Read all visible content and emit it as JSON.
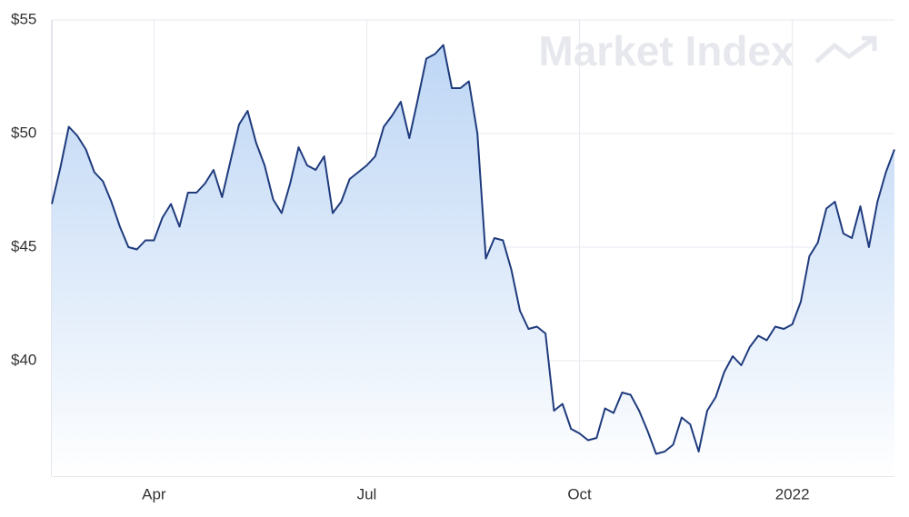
{
  "chart_data": {
    "type": "area-line",
    "watermark": "Market Index",
    "categories": [
      null,
      null,
      null,
      null,
      null,
      null,
      null,
      null,
      null,
      null,
      null,
      null,
      "Apr",
      null,
      null,
      null,
      null,
      null,
      null,
      null,
      null,
      null,
      null,
      null,
      null,
      null,
      null,
      null,
      null,
      null,
      null,
      null,
      null,
      null,
      null,
      null,
      null,
      "Jul",
      null,
      null,
      null,
      null,
      null,
      null,
      null,
      null,
      null,
      null,
      null,
      null,
      null,
      null,
      null,
      null,
      null,
      null,
      null,
      null,
      null,
      null,
      null,
      null,
      "Oct",
      null,
      null,
      null,
      null,
      null,
      null,
      null,
      null,
      null,
      null,
      null,
      null,
      null,
      null,
      null,
      null,
      null,
      null,
      null,
      null,
      null,
      null,
      null,
      null,
      "2022",
      null,
      null,
      null,
      null,
      null,
      null,
      null,
      null,
      null,
      null,
      null,
      null
    ],
    "series": [
      {
        "color": "#1f3b7d",
        "area_color": "#b7d2f4",
        "values": [
          46.9,
          48.5,
          50.3,
          49.9,
          49.3,
          48.3,
          47.9,
          47.0,
          45.9,
          45.0,
          44.9,
          45.3,
          45.3,
          46.3,
          46.9,
          45.9,
          47.4,
          47.4,
          47.8,
          48.4,
          47.2,
          48.8,
          50.4,
          51.0,
          49.6,
          48.6,
          47.1,
          46.5,
          47.8,
          49.4,
          48.6,
          48.4,
          49.0,
          46.5,
          47.0,
          48.0,
          48.3,
          48.6,
          49.0,
          50.3,
          50.8,
          51.4,
          49.8,
          51.5,
          53.3,
          53.5,
          53.9,
          52.0,
          52.0,
          52.3,
          50.0,
          44.5,
          45.4,
          45.3,
          44.0,
          42.2,
          41.4,
          41.5,
          41.2,
          37.8,
          38.1,
          37.0,
          36.8,
          36.5,
          36.6,
          37.9,
          37.7,
          38.6,
          38.5,
          37.8,
          36.9,
          35.9,
          36.0,
          36.3,
          37.5,
          37.2,
          36.0,
          37.8,
          38.4,
          39.5,
          40.2,
          39.8,
          40.6,
          41.1,
          40.9,
          41.5,
          41.4,
          41.6,
          42.6,
          44.6,
          45.2,
          46.7,
          47.0,
          45.6,
          45.4,
          46.8,
          45.0,
          47.0,
          48.3,
          49.3
        ]
      }
    ],
    "ylim": [
      35,
      55
    ],
    "yticks": [
      {
        "value": 40,
        "label": "$40"
      },
      {
        "value": 45,
        "label": "$45"
      },
      {
        "value": 50,
        "label": "$50"
      },
      {
        "value": 55,
        "label": "$55"
      }
    ],
    "grid": true
  }
}
